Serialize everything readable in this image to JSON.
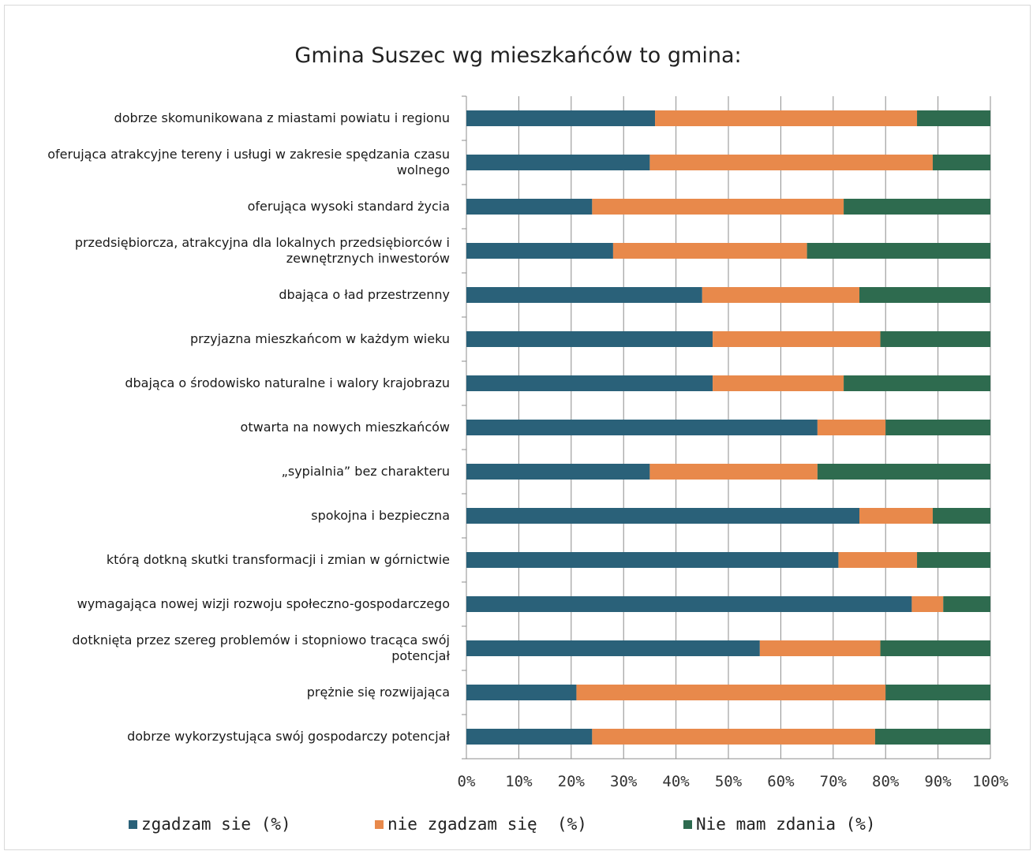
{
  "chart_data": {
    "type": "bar",
    "orientation": "horizontal-stacked-100",
    "title": "Gmina Suszec wg mieszkańców to gmina:",
    "categories": [
      [
        "dobrze skomunikowana z miastami powiatu i regionu"
      ],
      [
        "oferująca atrakcyjne tereny i usługi w zakresie spędzania czasu",
        "wolnego"
      ],
      [
        "oferująca wysoki standard życia"
      ],
      [
        "przedsiębiorcza, atrakcyjna dla lokalnych przedsiębiorców i",
        "zewnętrznych inwestorów"
      ],
      [
        "dbająca o ład przestrzenny"
      ],
      [
        "przyjazna mieszkańcom w każdym  wieku"
      ],
      [
        "dbająca o środowisko naturalne  i walory krajobrazu"
      ],
      [
        "otwarta na nowych mieszkańców"
      ],
      [
        "„sypialnia” bez charakteru"
      ],
      [
        "spokojna i bezpieczna"
      ],
      [
        "którą  dotkną skutki  transformacji  i zmian w górnictwie"
      ],
      [
        "wymagająca nowej wizji rozwoju społeczno-gospodarczego"
      ],
      [
        "dotknięta przez szereg problemów i stopniowo tracąca swój",
        "potencjał"
      ],
      [
        "prężnie się rozwijająca"
      ],
      [
        "dobrze wykorzystująca swój gospodarczy potencjał"
      ]
    ],
    "series": [
      {
        "name": "zgadzam sie (%)",
        "color": "#2a6179",
        "values": [
          36,
          35,
          24,
          28,
          45,
          47,
          47,
          67,
          35,
          75,
          71,
          85,
          56,
          21,
          24
        ]
      },
      {
        "name": "nie zgadzam się  (%)",
        "color": "#e8894b",
        "values": [
          50,
          54,
          48,
          37,
          30,
          32,
          25,
          13,
          32,
          14,
          15,
          6,
          23,
          59,
          54
        ]
      },
      {
        "name": "Nie mam zdania (%)",
        "color": "#2e6b4f",
        "values": [
          14,
          11,
          28,
          35,
          25,
          21,
          28,
          20,
          33,
          11,
          14,
          9,
          21,
          20,
          22
        ]
      }
    ],
    "xlim": [
      0,
      100
    ],
    "x_ticks": [
      "0%",
      "10%",
      "20%",
      "30%",
      "40%",
      "50%",
      "60%",
      "70%",
      "80%",
      "90%",
      "100%"
    ],
    "grid": true,
    "legend_position": "bottom"
  }
}
